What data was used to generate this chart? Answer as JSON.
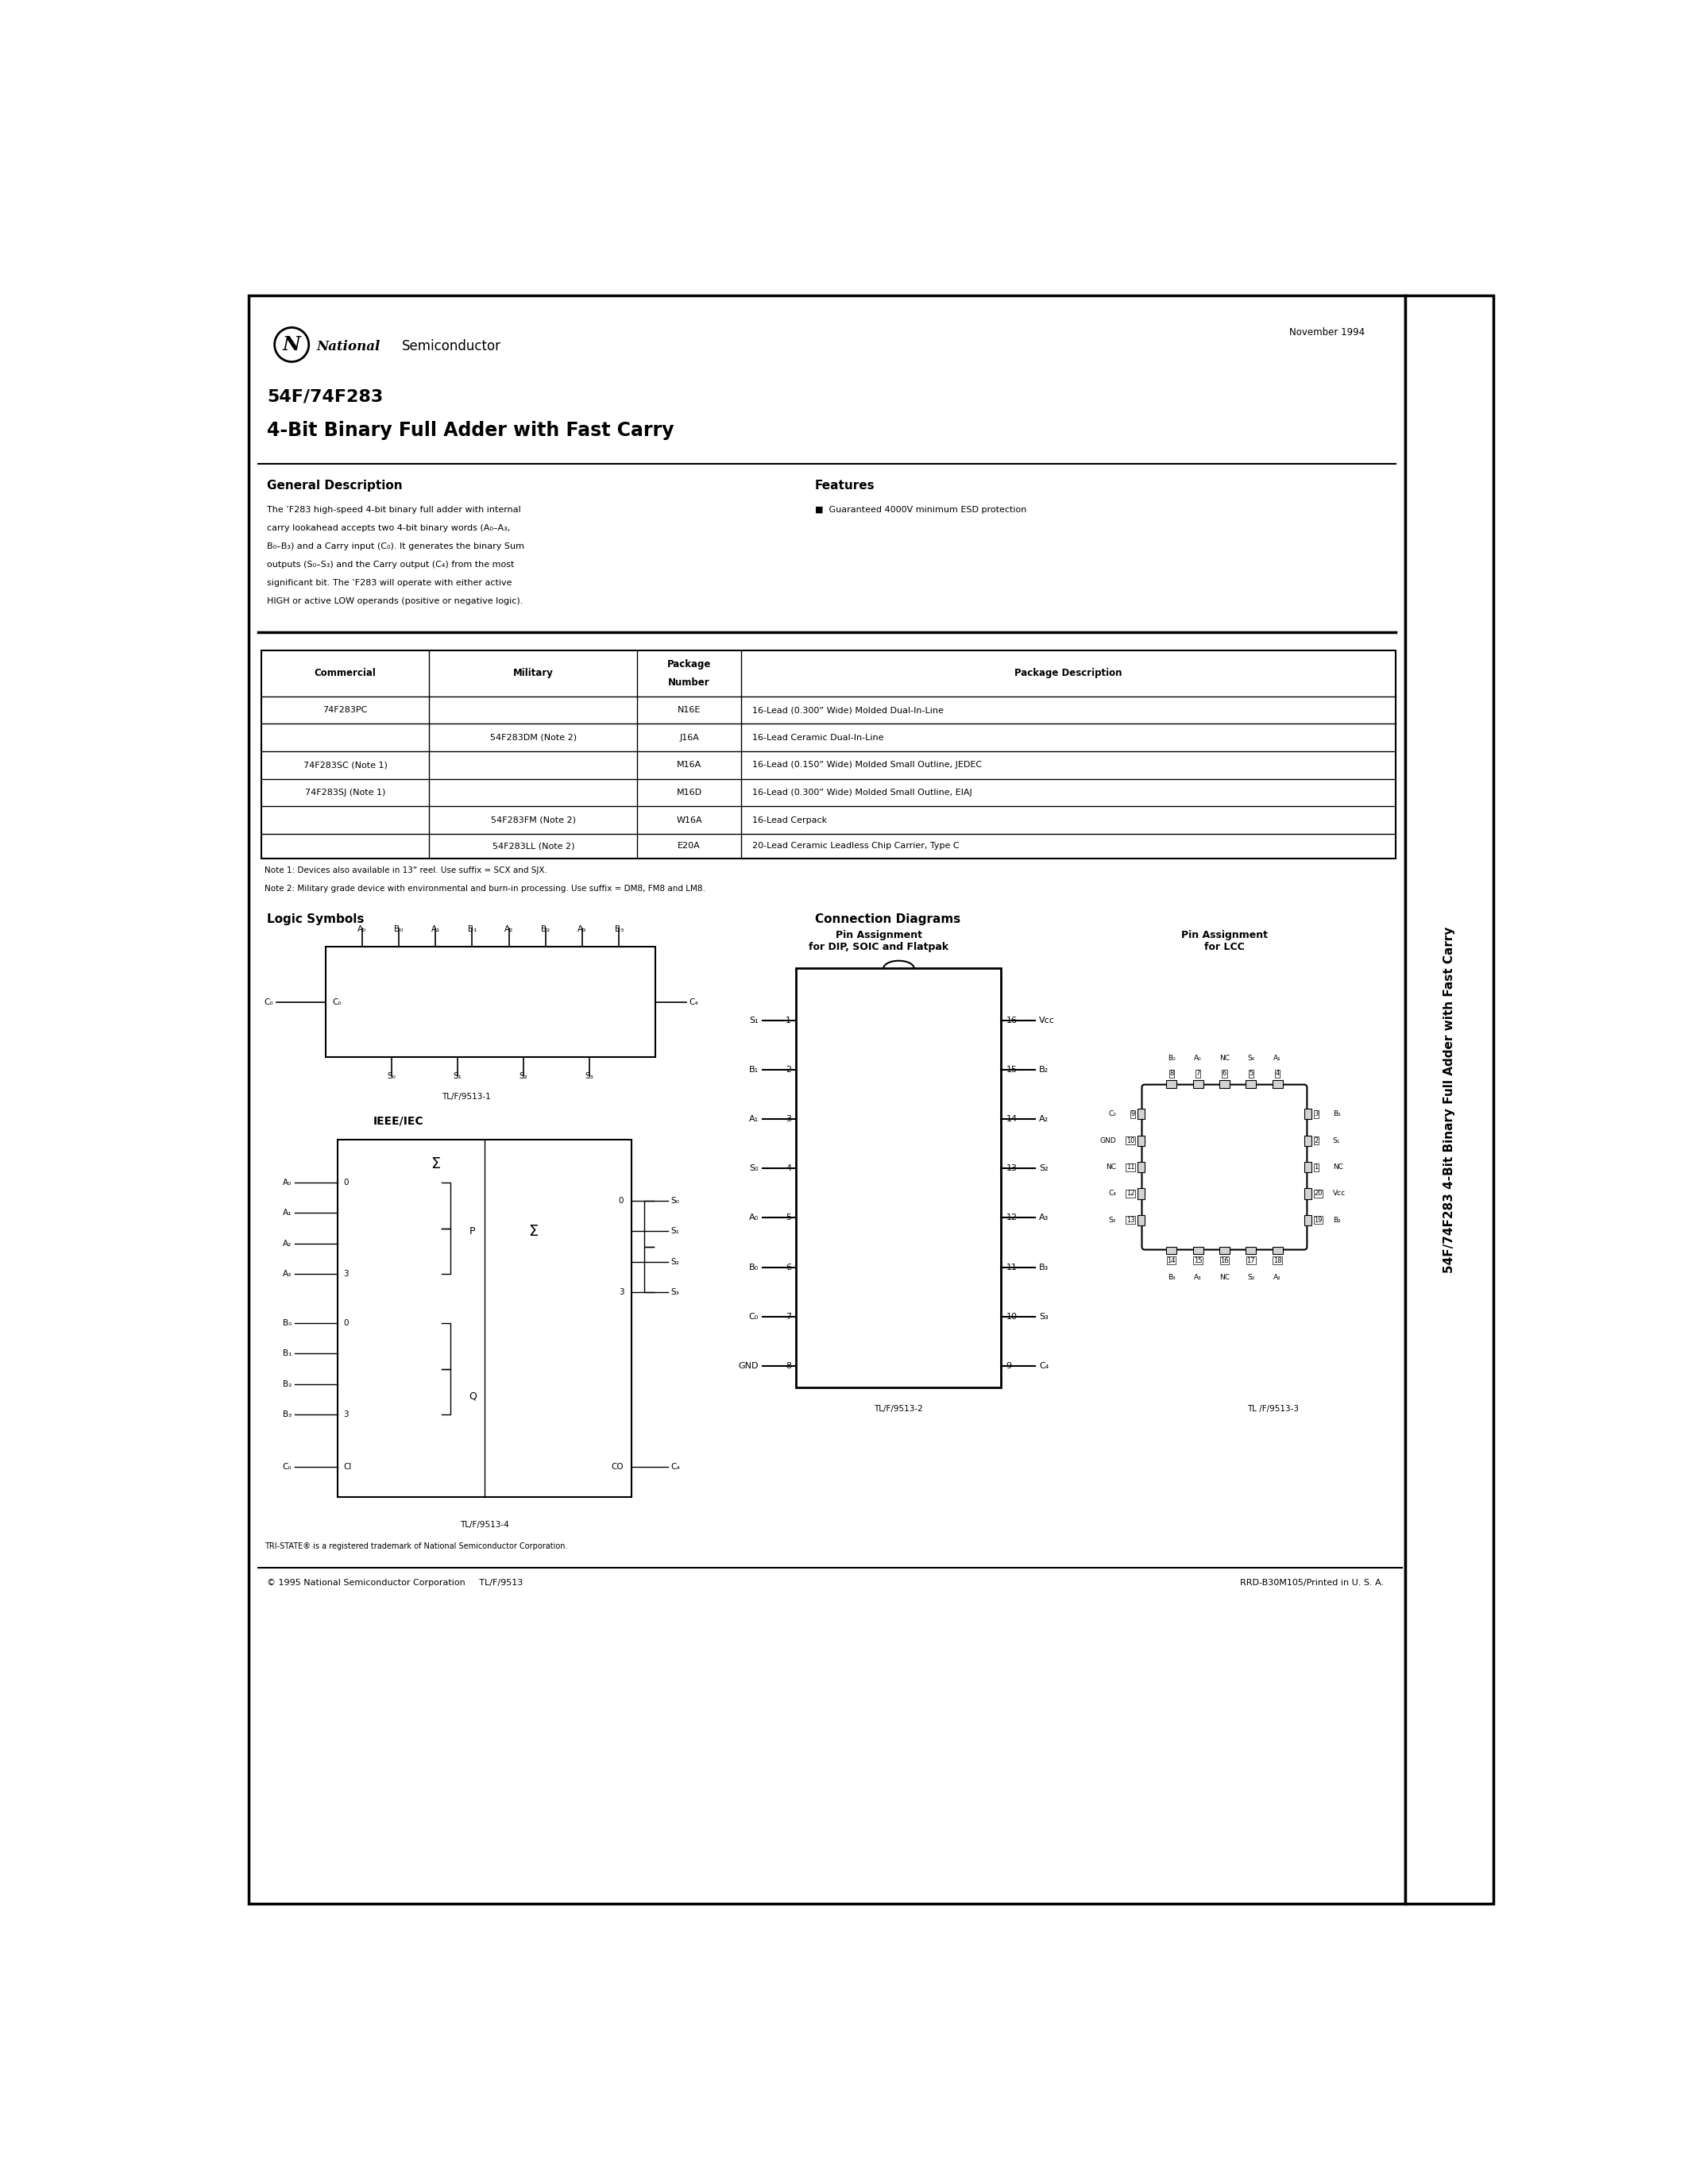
{
  "bg_color": "#ffffff",
  "page_width": 21.25,
  "page_height": 27.5,
  "header_date": "November 1994",
  "title_line1": "54F/74F283",
  "title_line2": "4-Bit Binary Full Adder with Fast Carry",
  "section_general": "General Description",
  "general_text": "The ’F283 high-speed 4-bit binary full adder with internal\ncarry lookahead accepts two 4-bit binary words (A₀–A₃,\nB₀–B₃) and a Carry input (C₀). It generates the binary Sum\noutputs (S₀–S₃) and the Carry output (C₄) from the most\nsignificant bit. The ’F283 will operate with either active\nHIGH or active LOW operands (positive or negative logic).",
  "section_features": "Features",
  "features_text": "■  Guaranteed 4000V minimum ESD protection",
  "table_header": [
    "Commercial",
    "Military",
    "Package\nNumber",
    "Package Description"
  ],
  "table_rows": [
    [
      "74F283PC",
      "",
      "N16E",
      "16-Lead (0.300” Wide) Molded Dual-In-Line"
    ],
    [
      "",
      "54F283DM (Note 2)",
      "J16A",
      "16-Lead Ceramic Dual-In-Line"
    ],
    [
      "74F283SC (Note 1)",
      "",
      "M16A",
      "16-Lead (0.150” Wide) Molded Small Outline, JEDEC"
    ],
    [
      "74F283SJ (Note 1)",
      "",
      "M16D",
      "16-Lead (0.300” Wide) Molded Small Outline, EIAJ"
    ],
    [
      "",
      "54F283FM (Note 2)",
      "W16A",
      "16-Lead Cerpack"
    ],
    [
      "",
      "54F283LL (Note 2)",
      "E20A",
      "20-Lead Ceramic Leadless Chip Carrier, Type C"
    ]
  ],
  "note1": "Note 1: Devices also available in 13” reel. Use suffix = SCX and SJX.",
  "note2": "Note 2: Military grade device with environmental and burn-in processing. Use suffix = DM8, FM8 and LM8.",
  "section_logic": "Logic Symbols",
  "section_connection": "Connection Diagrams",
  "footer_left": "© 1995 National Semiconductor Corporation     TL/F/9513",
  "footer_right": "RRD-B30M105/Printed in U. S. A.",
  "fig1_label": "TL/F/9513-1",
  "fig2_label": "TL/F/9513-2",
  "fig3_label": "TL /F/9513-3",
  "fig4_label": "TL/F/9513-4",
  "ieee_label": "IEEE/IEC",
  "tri_state": "TRI-STATE® is a registered trademark of National Semiconductor Corporation.",
  "side_text": "54F/74F283 4-Bit Binary Full Adder with Fast Carry",
  "pin_assign_dip": "Pin Assignment\nfor DIP, SOIC and Flatpak",
  "pin_assign_lcc": "Pin Assignment\nfor LCC",
  "dip_left_pins": [
    "S₁",
    "B₁",
    "A₁",
    "S₀",
    "A₀",
    "B₀",
    "C₀",
    "GND"
  ],
  "dip_left_nums": [
    "1",
    "2",
    "3",
    "4",
    "5",
    "6",
    "7",
    "8"
  ],
  "dip_right_pins": [
    "Vᴄᴄ",
    "B₂",
    "A₂",
    "S₂",
    "A₃",
    "B₃",
    "S₃",
    "C₄"
  ],
  "dip_right_nums": [
    "16",
    "15",
    "14",
    "13",
    "12",
    "11",
    "10",
    "9"
  ],
  "lcc_top_labels": [
    "B₀",
    "A₀",
    "NC",
    "S₀",
    "A₁"
  ],
  "lcc_top_nums": [
    "8",
    "7",
    "6",
    "5",
    "4"
  ],
  "lcc_right_labels": [
    "B₁",
    "S₁",
    "NC",
    "Vᴄᴄ",
    "B₂"
  ],
  "lcc_right_nums": [
    "3",
    "2",
    "1",
    "20",
    "19"
  ],
  "lcc_bottom_labels": [
    "B₃",
    "A₃",
    "NC",
    "S₂",
    "A₂"
  ],
  "lcc_bottom_nums": [
    "14",
    "15",
    "16",
    "17",
    "18"
  ],
  "lcc_left_labels": [
    "C₀",
    "GND",
    "NC",
    "C₄",
    "S₃"
  ],
  "lcc_left_nums": [
    "9",
    "10",
    "11",
    "12",
    "13"
  ]
}
